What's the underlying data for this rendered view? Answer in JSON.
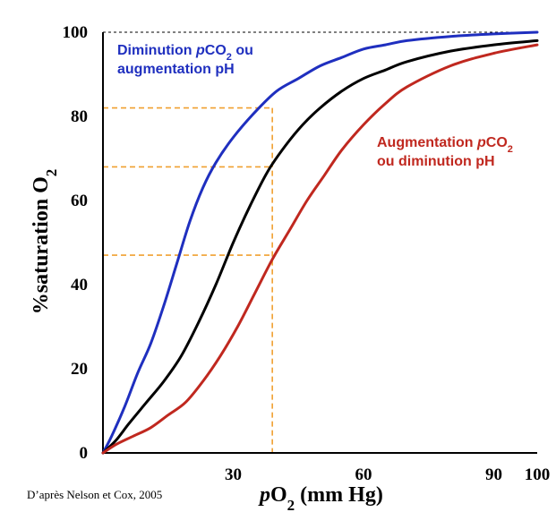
{
  "chart_data": {
    "type": "line",
    "xlabel_prefix": "p",
    "xlabel_main": "O",
    "xlabel_sub": "2",
    "xlabel_suffix": " (mm Hg)",
    "ylabel_main": "%saturation O",
    "ylabel_sub": "2",
    "xlim": [
      0,
      100
    ],
    "ylim": [
      0,
      100
    ],
    "x_ticks": [
      30,
      60,
      90,
      100
    ],
    "y_ticks": [
      0,
      20,
      40,
      60,
      80,
      100
    ],
    "grid": false,
    "series": [
      {
        "key": "left",
        "color": "#1f2fbf",
        "x": [
          0,
          2,
          5,
          8,
          11,
          14,
          17,
          20,
          23,
          26,
          30,
          35,
          40,
          45,
          50,
          55,
          60,
          65,
          70,
          80,
          90,
          100
        ],
        "y": [
          0,
          4,
          11,
          19,
          26,
          35,
          45,
          55,
          63,
          69,
          75,
          81,
          86,
          89,
          92,
          94,
          96,
          97,
          98,
          99,
          99.6,
          100
        ]
      },
      {
        "key": "middle",
        "color": "#000000",
        "x": [
          0,
          3,
          6,
          10,
          14,
          18,
          22,
          26,
          30,
          34,
          38,
          42,
          46,
          50,
          55,
          60,
          65,
          70,
          80,
          90,
          100
        ],
        "y": [
          0,
          3,
          7,
          12,
          17,
          23,
          31,
          40,
          50,
          59,
          67,
          73,
          78,
          82,
          86,
          89,
          91,
          93,
          95.5,
          97,
          98
        ]
      },
      {
        "key": "right",
        "color": "#c0281f",
        "x": [
          0,
          3,
          7,
          11,
          15,
          19,
          23,
          27,
          31,
          35,
          39,
          43,
          47,
          51,
          55,
          60,
          65,
          70,
          80,
          90,
          100
        ],
        "y": [
          0,
          2,
          4,
          6,
          9,
          12,
          17,
          23,
          30,
          38,
          46,
          53,
          60,
          66,
          72,
          78,
          83,
          87,
          92,
          95,
          97
        ]
      }
    ],
    "reference_lines": {
      "x": 39,
      "y_levels": [
        82,
        68,
        47
      ],
      "color": "#f0a030",
      "top_line_y": 100
    },
    "annotations": [
      {
        "key": "left_note",
        "color": "#1f2fbf",
        "line1_start": "Diminution ",
        "line1_italic": "p",
        "line1_main": "CO",
        "line1_sub": "2",
        "line1_end": " ou",
        "line2": "augmentation pH"
      },
      {
        "key": "right_note",
        "color": "#c0281f",
        "line1_start": "Augmentation ",
        "line1_italic": "p",
        "line1_main": "CO",
        "line1_sub": "2",
        "line2": "ou diminution pH"
      }
    ],
    "source": "D’après Nelson et Cox, 2005"
  }
}
